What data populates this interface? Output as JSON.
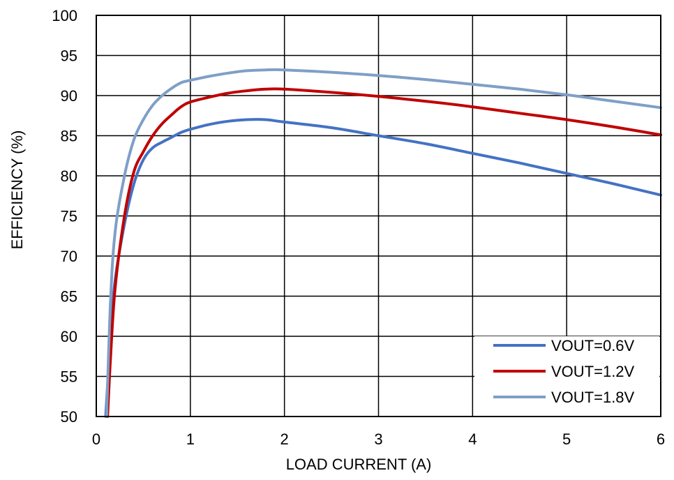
{
  "chart_data": {
    "type": "line",
    "title": "",
    "xlabel": "LOAD CURRENT (A)",
    "ylabel": "EFFICIENCY (%)",
    "xlim": [
      0,
      6
    ],
    "ylim": [
      50,
      100
    ],
    "xticks": [
      0,
      1,
      2,
      3,
      4,
      5,
      6
    ],
    "yticks": [
      50,
      55,
      60,
      65,
      70,
      75,
      80,
      85,
      90,
      95,
      100
    ],
    "grid": true,
    "legend_position": "bottom-right",
    "series": [
      {
        "name": "VOUT=0.6V",
        "color": "#4472c4",
        "x": [
          0.1,
          0.12,
          0.15,
          0.2,
          0.3,
          0.4,
          0.5,
          0.6,
          0.7,
          0.8,
          0.9,
          1.0,
          1.2,
          1.4,
          1.6,
          1.8,
          2.0,
          2.5,
          3.0,
          3.5,
          4.0,
          4.5,
          5.0,
          5.5,
          6.0
        ],
        "y": [
          50,
          54,
          60,
          67,
          74,
          79,
          82,
          83.5,
          84.2,
          84.8,
          85.4,
          85.8,
          86.4,
          86.8,
          87.0,
          87.0,
          86.7,
          86.0,
          85.0,
          84.0,
          82.8,
          81.6,
          80.3,
          79.0,
          77.6
        ]
      },
      {
        "name": "VOUT=1.2V",
        "color": "#c00000",
        "x": [
          0.12,
          0.15,
          0.2,
          0.3,
          0.4,
          0.5,
          0.6,
          0.7,
          0.8,
          0.9,
          1.0,
          1.2,
          1.4,
          1.6,
          1.8,
          2.0,
          2.5,
          3.0,
          3.5,
          4.0,
          4.5,
          5.0,
          5.5,
          6.0
        ],
        "y": [
          50,
          57,
          66,
          75,
          80.5,
          83,
          85,
          86.5,
          87.6,
          88.6,
          89.2,
          89.8,
          90.3,
          90.6,
          90.8,
          90.8,
          90.4,
          89.9,
          89.3,
          88.6,
          87.8,
          87.0,
          86.1,
          85.1
        ]
      },
      {
        "name": "VOUT=1.8V",
        "color": "#7f9fc6",
        "x": [
          0.11,
          0.15,
          0.2,
          0.3,
          0.4,
          0.5,
          0.6,
          0.7,
          0.8,
          0.9,
          1.0,
          1.2,
          1.4,
          1.6,
          1.8,
          2.0,
          2.5,
          3.0,
          3.5,
          4.0,
          4.5,
          5.0,
          5.5,
          6.0
        ],
        "y": [
          50,
          64,
          73,
          80,
          84.5,
          87,
          88.8,
          90,
          90.9,
          91.6,
          91.9,
          92.4,
          92.8,
          93.1,
          93.2,
          93.2,
          92.9,
          92.5,
          92.0,
          91.4,
          90.8,
          90.1,
          89.3,
          88.5
        ]
      }
    ]
  }
}
